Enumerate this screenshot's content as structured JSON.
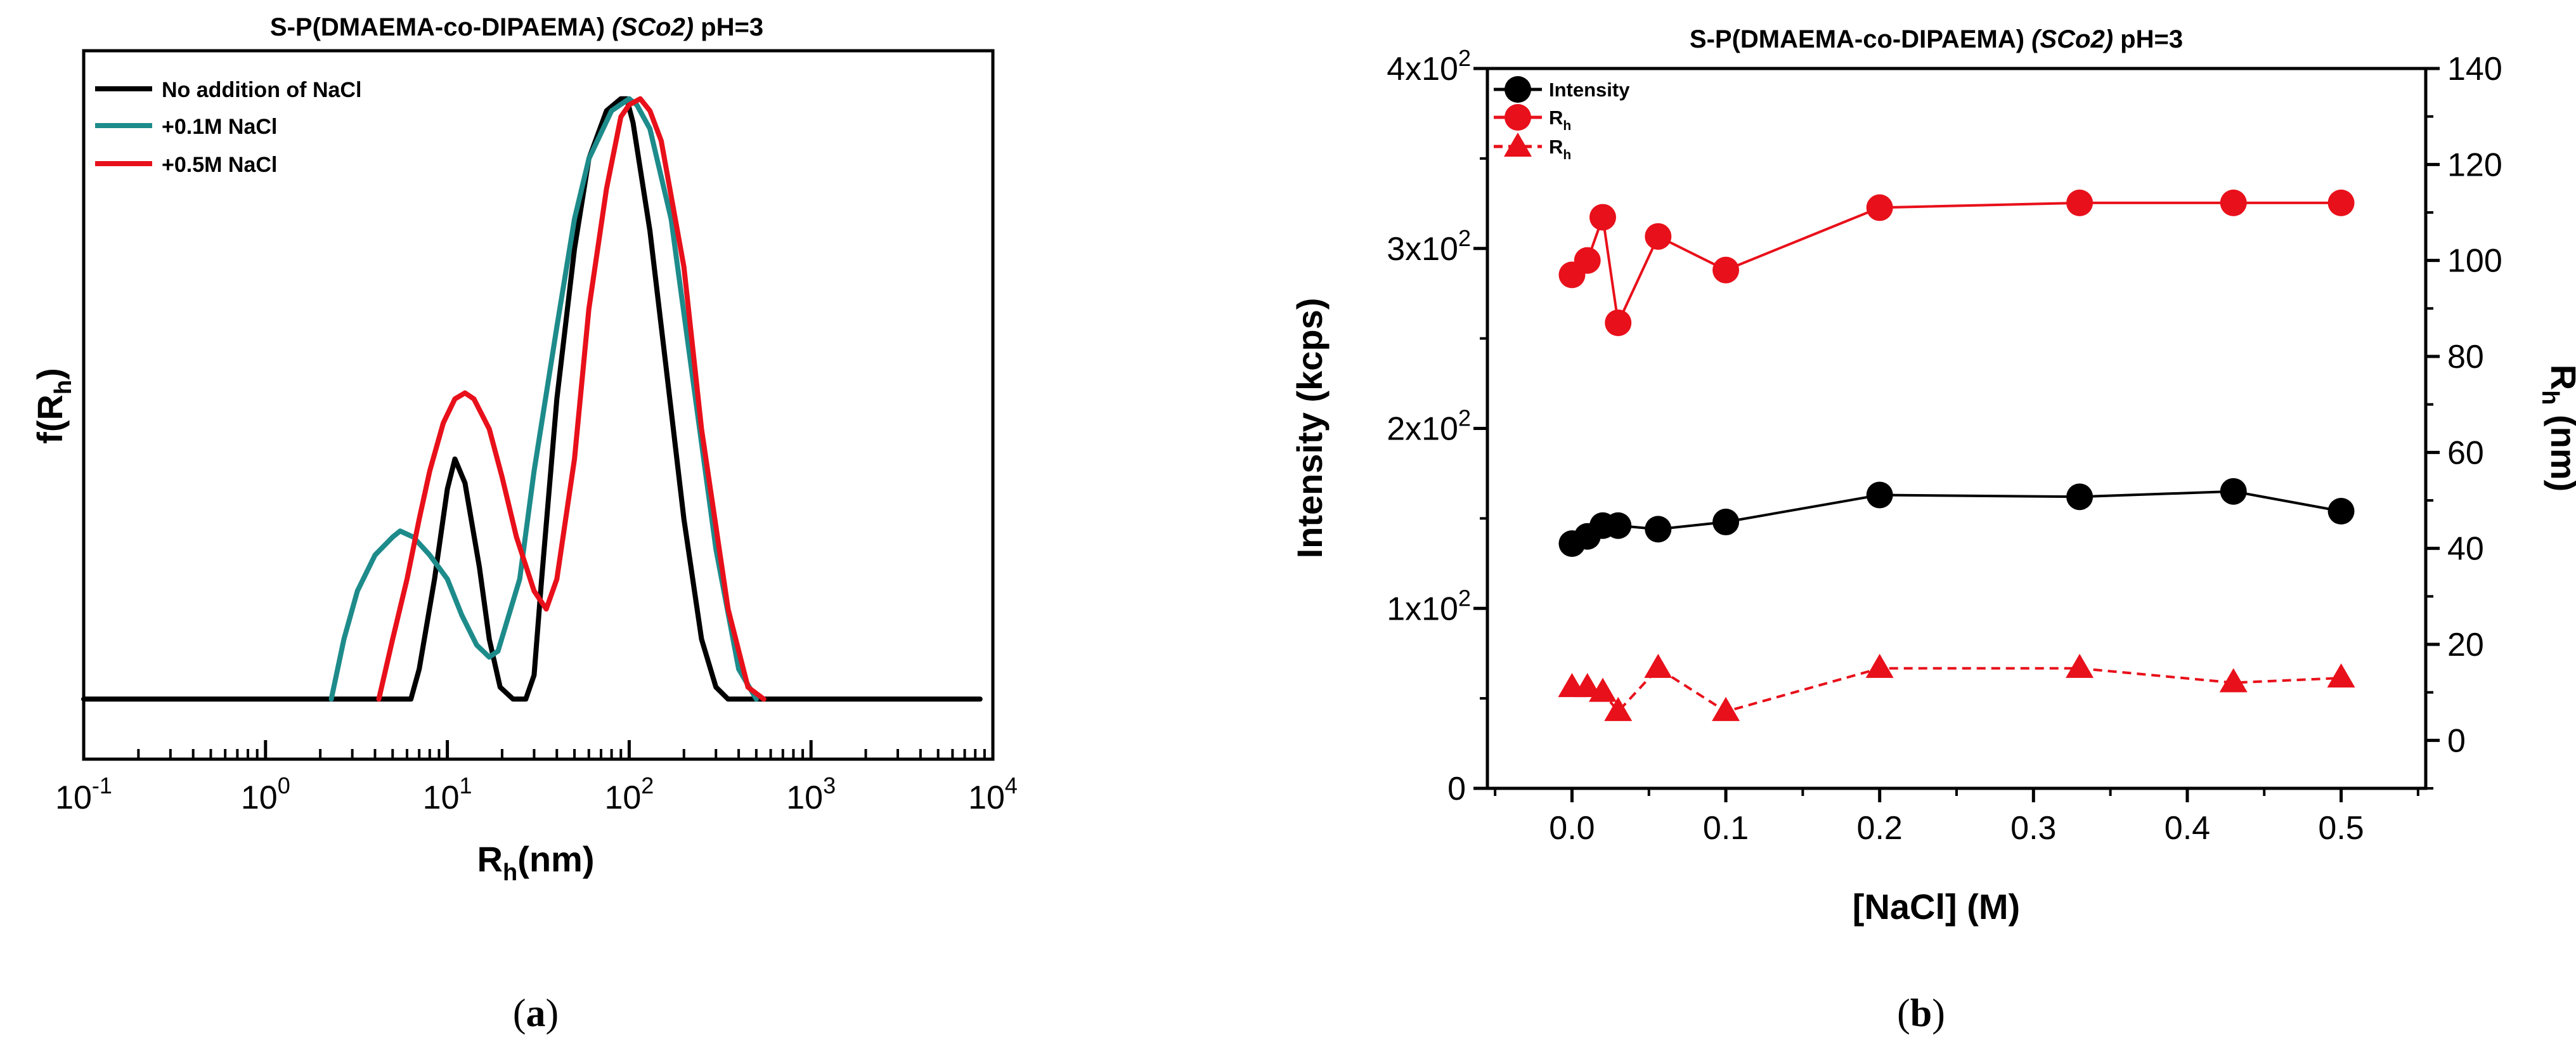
{
  "chart_data": [
    {
      "panel": "a",
      "type": "line",
      "title": "S-P(DMAEMA-co-DIPAEMA) (SCo2)  pH=3",
      "title_parts": [
        "S-P(DMAEMA-co-DIPAEMA) ",
        "(SCo2)",
        "  pH=3"
      ],
      "xlabel": "R",
      "xlabel_sub": "h",
      "xlabel_suffix": "(nm)",
      "ylabel": "f(R",
      "ylabel_sub": "h",
      "ylabel_suffix": ")",
      "x_scale": "log",
      "xlim": [
        0.1,
        10000
      ],
      "ylim": [
        -0.1,
        1.08
      ],
      "xticks": [
        {
          "base": "10",
          "exp": "-1",
          "value": 0.1
        },
        {
          "base": "10",
          "exp": "0",
          "value": 1
        },
        {
          "base": "10",
          "exp": "1",
          "value": 10
        },
        {
          "base": "10",
          "exp": "2",
          "value": 100
        },
        {
          "base": "10",
          "exp": "3",
          "value": 1000
        },
        {
          "base": "10",
          "exp": "4",
          "value": 10000
        }
      ],
      "legend_position": "top-left",
      "series": [
        {
          "name": "No addition of NaCl",
          "color": "#000000",
          "x": [
            0.1,
            0.3,
            1,
            3,
            6.3,
            7,
            8.5,
            10,
            11,
            12.5,
            15,
            17,
            19.5,
            23,
            27,
            30,
            33,
            40,
            50,
            60,
            75,
            90,
            97,
            105,
            130,
            160,
            200,
            250,
            300,
            350,
            8500
          ],
          "y": [
            0,
            0,
            0,
            0,
            0,
            0.05,
            0.2,
            0.35,
            0.4,
            0.36,
            0.22,
            0.1,
            0.02,
            0,
            0,
            0.04,
            0.2,
            0.5,
            0.75,
            0.9,
            0.98,
            1.0,
            1.0,
            0.96,
            0.78,
            0.55,
            0.3,
            0.1,
            0.02,
            0,
            0
          ]
        },
        {
          "name": "+0.1M NaCl",
          "color": "#1e8b8b",
          "x": [
            2.3,
            2.7,
            3.2,
            4,
            5,
            5.5,
            6.5,
            8,
            10,
            12,
            14.5,
            17,
            19,
            25,
            30,
            40,
            50,
            60,
            80,
            100,
            110,
            130,
            170,
            220,
            300,
            400,
            500
          ],
          "y": [
            0,
            0.1,
            0.18,
            0.24,
            0.27,
            0.28,
            0.27,
            0.24,
            0.2,
            0.14,
            0.09,
            0.07,
            0.08,
            0.2,
            0.38,
            0.62,
            0.8,
            0.9,
            0.98,
            1.0,
            0.99,
            0.95,
            0.8,
            0.55,
            0.25,
            0.05,
            0
          ]
        },
        {
          "name": "+0.5M NaCl",
          "color": "#e8101a",
          "x": [
            4.2,
            5,
            6,
            7,
            8,
            9.5,
            11,
            12.5,
            14,
            17,
            20,
            24,
            30,
            35,
            40,
            50,
            60,
            75,
            90,
            100,
            115,
            130,
            150,
            200,
            250,
            350,
            450,
            550
          ],
          "y": [
            0,
            0.1,
            0.2,
            0.3,
            0.38,
            0.46,
            0.5,
            0.51,
            0.5,
            0.45,
            0.37,
            0.27,
            0.18,
            0.15,
            0.2,
            0.4,
            0.65,
            0.85,
            0.97,
            0.99,
            1.0,
            0.98,
            0.93,
            0.72,
            0.45,
            0.15,
            0.02,
            0
          ]
        }
      ]
    },
    {
      "panel": "b",
      "type": "scatter",
      "title": "S-P(DMAEMA-co-DIPAEMA) (SCo2) pH=3",
      "title_parts": [
        "S-P(DMAEMA-co-DIPAEMA) ",
        "(SCo2)",
        " pH=3"
      ],
      "xlabel": "[NaCl] (M)",
      "ylabel": "Intensity (kcps)",
      "y2label": "R",
      "y2label_sub": "h",
      "y2label_suffix": " (nm)",
      "xlim": [
        -0.055,
        0.555
      ],
      "xticks": [
        0.0,
        0.1,
        0.2,
        0.3,
        0.4,
        0.5
      ],
      "xtick_labels": [
        "0.0",
        "0.1",
        "0.2",
        "0.3",
        "0.4",
        "0.5"
      ],
      "ylim": [
        0,
        400
      ],
      "yticks": [
        {
          "value": 0,
          "label": "0",
          "exp": ""
        },
        {
          "value": 100,
          "label": "1x10",
          "exp": "2"
        },
        {
          "value": 200,
          "label": "2x10",
          "exp": "2"
        },
        {
          "value": 300,
          "label": "3x10",
          "exp": "2"
        },
        {
          "value": 400,
          "label": "4x10",
          "exp": "2"
        }
      ],
      "y2lim": [
        -10,
        140
      ],
      "y2ticks": [
        0,
        20,
        40,
        60,
        80,
        100,
        120,
        140
      ],
      "y2tick_labels": [
        "0",
        "20",
        "40",
        "60",
        "80",
        "100",
        "120",
        "140"
      ],
      "legend_position": "top-left",
      "series": [
        {
          "name": "Intensity",
          "name_sub": "",
          "axis": "left",
          "marker": "circle",
          "line": "solid",
          "color": "#000000",
          "x": [
            0,
            0.01,
            0.02,
            0.03,
            0.056,
            0.1,
            0.2,
            0.33,
            0.43,
            0.5
          ],
          "y": [
            136,
            140,
            146,
            146,
            144,
            148,
            163,
            162,
            165,
            154
          ]
        },
        {
          "name": "R",
          "name_sub": "h",
          "axis": "right",
          "marker": "circle",
          "line": "solid",
          "color": "#e8101a",
          "x": [
            0,
            0.01,
            0.02,
            0.03,
            0.056,
            0.1,
            0.2,
            0.33,
            0.43,
            0.5
          ],
          "y": [
            97,
            100,
            109,
            87,
            105,
            98,
            111,
            112,
            112,
            112
          ]
        },
        {
          "name": "R",
          "name_sub": "h",
          "axis": "right",
          "marker": "triangle",
          "line": "dashed",
          "color": "#e8101a",
          "x": [
            0,
            0.01,
            0.02,
            0.03,
            0.056,
            0.1,
            0.2,
            0.33,
            0.43,
            0.5
          ],
          "y": [
            11,
            11,
            10,
            6,
            15,
            6,
            15,
            15,
            12,
            13
          ]
        }
      ]
    }
  ],
  "captions": {
    "a": {
      "open": "(",
      "letter": "a",
      "close": ")"
    },
    "b": {
      "open": "(",
      "letter": "b",
      "close": ")"
    }
  }
}
